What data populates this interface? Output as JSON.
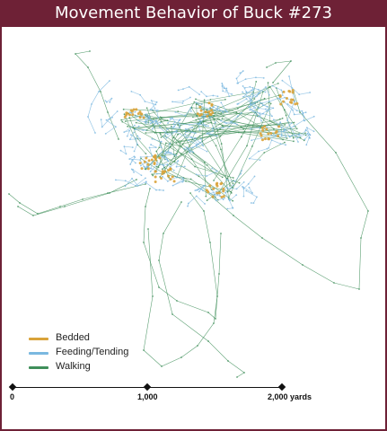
{
  "title": "Movement Behavior of Buck #273",
  "colors": {
    "header": "#6e2136",
    "bedded": "#d9a33a",
    "feeding": "#7ab8e0",
    "walking": "#3f8f5a"
  },
  "legend": [
    {
      "label": "Bedded",
      "color": "#d9a33a"
    },
    {
      "label": "Feeding/Tending",
      "color": "#7ab8e0"
    },
    {
      "label": "Walking",
      "color": "#3f8f5a"
    }
  ],
  "scale": {
    "labels": [
      "0",
      "1,000",
      "2,000 yards"
    ]
  }
}
